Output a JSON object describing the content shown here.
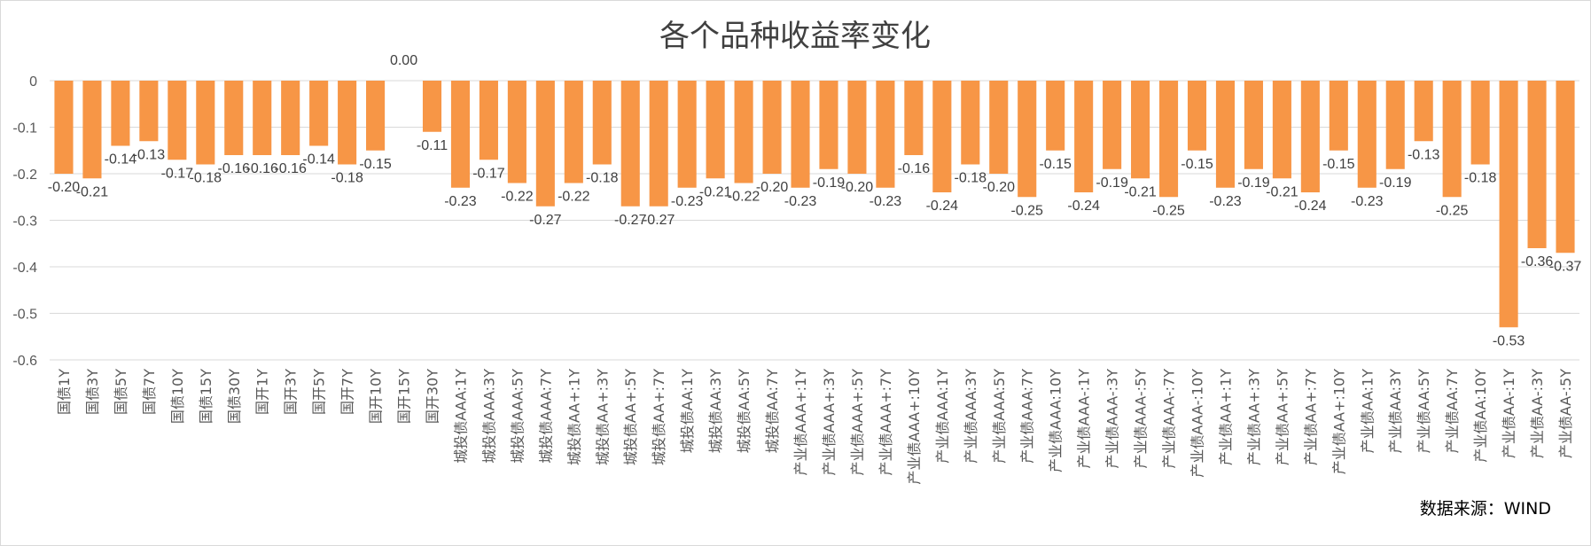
{
  "chart_data": {
    "type": "bar",
    "title": "各个品种收益率变化",
    "source": "数据来源：WIND",
    "ylim": [
      -0.6,
      0
    ],
    "yticks": [
      0,
      -0.1,
      -0.2,
      -0.3,
      -0.4,
      -0.5,
      -0.6
    ],
    "ytick_labels": [
      "0",
      "-0.1",
      "-0.2",
      "-0.3",
      "-0.4",
      "-0.5",
      "-0.6"
    ],
    "grid": true,
    "bar_color": "#F79646",
    "categories": [
      "国债1Y",
      "国债3Y",
      "国债5Y",
      "国债7Y",
      "国债10Y",
      "国债15Y",
      "国债30Y",
      "国开1Y",
      "国开3Y",
      "国开5Y",
      "国开7Y",
      "国开10Y",
      "国开15Y",
      "国开30Y",
      "城投债AAA:1Y",
      "城投债AAA:3Y",
      "城投债AAA:5Y",
      "城投债AAA:7Y",
      "城投债AA+:1Y",
      "城投债AA+:3Y",
      "城投债AA+:5Y",
      "城投债AA+:7Y",
      "城投债AA:1Y",
      "城投债AA:3Y",
      "城投债AA:5Y",
      "城投债AA:7Y",
      "产业债AAA+:1Y",
      "产业债AAA+:3Y",
      "产业债AAA+:5Y",
      "产业债AAA+:7Y",
      "产业债AAA+:10Y",
      "产业债AAA:1Y",
      "产业债AAA:3Y",
      "产业债AAA:5Y",
      "产业债AAA:7Y",
      "产业债AAA:10Y",
      "产业债AAA-:1Y",
      "产业债AAA-:3Y",
      "产业债AAA-:5Y",
      "产业债AAA-:7Y",
      "产业债AAA-:10Y",
      "产业债AA+:1Y",
      "产业债AA+:3Y",
      "产业债AA+:5Y",
      "产业债AA+:7Y",
      "产业债AA+:10Y",
      "产业债AA:1Y",
      "产业债AA:3Y",
      "产业债AA:5Y",
      "产业债AA:7Y",
      "产业债AA:10Y",
      "产业债AA-:1Y",
      "产业债AA-:3Y",
      "产业债AA-:5Y"
    ],
    "values": [
      -0.2,
      -0.21,
      -0.14,
      -0.13,
      -0.17,
      -0.18,
      -0.16,
      -0.16,
      -0.16,
      -0.14,
      -0.18,
      -0.15,
      0.0,
      -0.11,
      -0.23,
      -0.17,
      -0.22,
      -0.27,
      -0.22,
      -0.18,
      -0.27,
      -0.27,
      -0.23,
      -0.21,
      -0.22,
      -0.2,
      -0.23,
      -0.19,
      -0.2,
      -0.23,
      -0.16,
      -0.24,
      -0.18,
      -0.2,
      -0.25,
      -0.15,
      -0.24,
      -0.19,
      -0.21,
      -0.25,
      -0.15,
      -0.23,
      -0.19,
      -0.21,
      -0.24,
      -0.15,
      -0.23,
      -0.19,
      -0.13,
      -0.25,
      -0.18,
      -0.53,
      -0.36,
      -0.37
    ],
    "data_labels": [
      "-0.20",
      "-0.21",
      "-0.14",
      "-0.13",
      "-0.17",
      "-0.18",
      "-0.16",
      "-0.16",
      "-0.16",
      "-0.14",
      "-0.18",
      "-0.15",
      "0.00",
      "-0.11",
      "-0.23",
      "-0.17",
      "-0.22",
      "-0.27",
      "-0.22",
      "-0.18",
      "-0.27",
      "-0.27",
      "-0.23",
      "-0.21",
      "-0.22",
      "-0.20",
      "-0.23",
      "-0.19",
      "-0.20",
      "-0.23",
      "-0.16",
      "-0.24",
      "-0.18",
      "-0.20",
      "-0.25",
      "-0.15",
      "-0.24",
      "-0.19",
      "-0.21",
      "-0.25",
      "-0.15",
      "-0.23",
      "-0.19",
      "-0.21",
      "-0.24",
      "-0.15",
      "-0.23",
      "-0.19",
      "-0.13",
      "-0.25",
      "-0.18",
      "-0.53",
      "-0.36",
      "-0.37"
    ]
  }
}
